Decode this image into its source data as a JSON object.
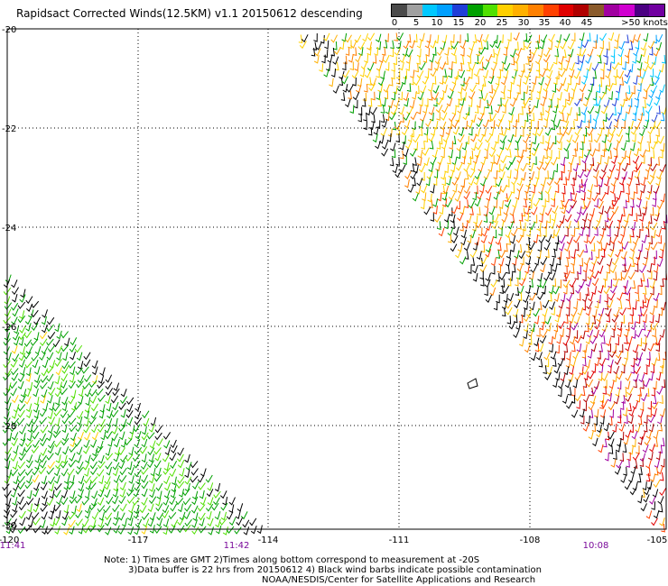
{
  "title": "Rapidsact Corrected Winds(12.5KM) v1.1 20150612 descending",
  "legend": {
    "labels": [
      "0",
      "5",
      "10",
      "15",
      "20",
      "25",
      "30",
      "35",
      "40",
      "45",
      ">50 knots"
    ],
    "colors": [
      "#4a4a4a",
      "#a0a0a0",
      "#00c8ff",
      "#00a0ff",
      "#1f3ed8",
      "#00a000",
      "#50e000",
      "#ffd000",
      "#ffb000",
      "#ff8000",
      "#ff4000",
      "#e00000",
      "#b00000",
      "#8a5a2a",
      "#a000a0",
      "#d000d0",
      "#4b0082",
      "#7000a0"
    ]
  },
  "map": {
    "lon_ticks": [
      "-120",
      "-117",
      "-114",
      "-111",
      "-108",
      "-105"
    ],
    "lat_ticks": [
      "-20",
      "-22",
      "-24",
      "-26",
      "-28",
      "-30"
    ],
    "times": [
      {
        "label": "11:41"
      },
      {
        "label": "11:42"
      },
      {
        "label": "10:08"
      }
    ]
  },
  "notes": {
    "line1": "Note: 1) Times are GMT 2)Times along bottom correspond to measurement at -20S",
    "line2": "3)Data buffer is 22 hrs from 20150612 4) Black wind barbs indicate possible contamination",
    "line3": "NOAA/NESDIS/Center for Satellite Applications and Research"
  }
}
